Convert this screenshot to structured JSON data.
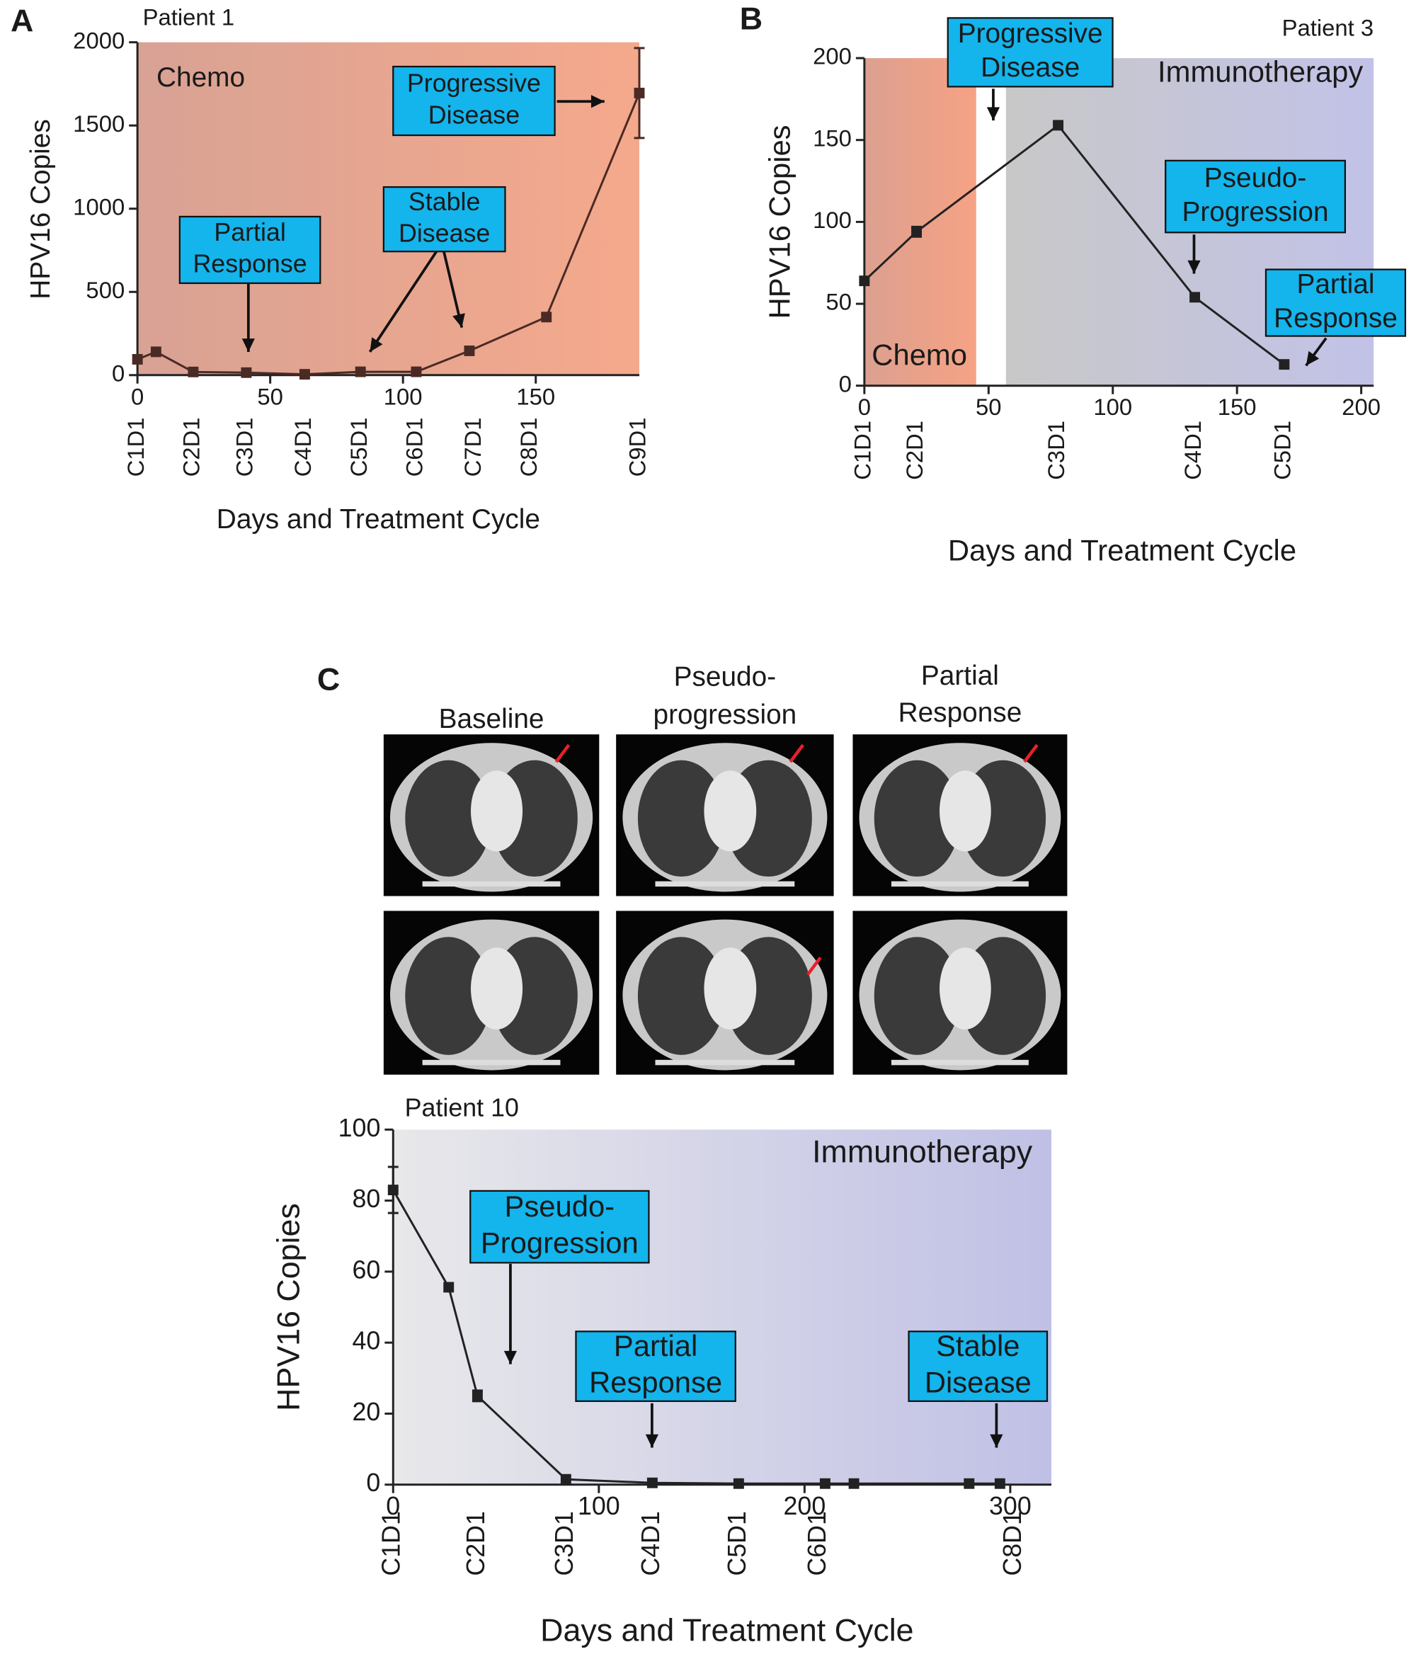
{
  "chart_data": [
    {
      "type": "line",
      "panel": "A",
      "title": "Patient 1",
      "xlabel": "Days and Treatment Cycle",
      "ylabel": "HPV16 Copies",
      "x": [
        0,
        7,
        21,
        41,
        63,
        84,
        105,
        125,
        154,
        189
      ],
      "values": [
        95,
        140,
        19,
        15,
        5,
        20,
        20,
        146,
        349,
        1695
      ],
      "errors": [
        null,
        null,
        null,
        null,
        null,
        null,
        null,
        null,
        null,
        270
      ],
      "color": "#4a2a24",
      "xlim": [
        0,
        189
      ],
      "ylim": [
        0,
        2000
      ],
      "xticks": [
        0,
        50,
        100,
        150
      ],
      "yticks": [
        0,
        500,
        1000,
        1500,
        2000
      ],
      "cycle_labels": {
        "labels": [
          "C1D1",
          "C2D1",
          "C3D1",
          "C4D1",
          "C5D1",
          "C6D1",
          "C7D1",
          "C8D1",
          "C9D1"
        ],
        "x": [
          0,
          21,
          41,
          63,
          84,
          105,
          127,
          148,
          189
        ]
      },
      "regions": [
        {
          "label": "Chemo",
          "start": 0,
          "end": 189,
          "color": [
            "#d8a294",
            "#f5a98c"
          ]
        }
      ],
      "annotations": [
        {
          "text": [
            "Progressive",
            "Disease"
          ]
        },
        {
          "text": [
            "Partial",
            "Response"
          ]
        },
        {
          "text": [
            "Stable",
            "Disease"
          ]
        }
      ]
    },
    {
      "type": "line",
      "panel": "B",
      "title": "Patient 3",
      "xlabel": "Days and Treatment Cycle",
      "ylabel": "HPV16 Copies",
      "x": [
        0,
        21,
        78,
        133,
        169
      ],
      "values": [
        64,
        94,
        159,
        54,
        13
      ],
      "errors": [
        null,
        3,
        null,
        null,
        null
      ],
      "color": "#222222",
      "xlim": [
        0,
        205
      ],
      "ylim": [
        0,
        200
      ],
      "xticks": [
        0,
        50,
        100,
        150,
        200
      ],
      "yticks": [
        0,
        50,
        100,
        150,
        200
      ],
      "cycle_labels": {
        "labels": [
          "C1D1",
          "C2D1",
          "C3D1",
          "C4D1",
          "C5D1"
        ],
        "x": [
          0,
          21,
          78,
          133,
          169
        ]
      },
      "regions": [
        {
          "label": "Chemo",
          "start": 0,
          "end": 45,
          "color": [
            "#dca090",
            "#f6a284"
          ]
        },
        {
          "label": "Immunotherapy",
          "start": 57,
          "end": 205,
          "color": [
            "#c8c8c8",
            "#c2c2e8"
          ]
        }
      ],
      "annotations": [
        {
          "text": [
            "Progressive",
            "Disease"
          ]
        },
        {
          "text": [
            "Pseudo-",
            "Progression"
          ]
        },
        {
          "text": [
            "Partial",
            "Response"
          ]
        }
      ]
    },
    {
      "type": "line",
      "panel": "C",
      "title": "Patient 10",
      "xlabel": "Days and Treatment Cycle",
      "ylabel": "HPV16 Copies",
      "x": [
        0,
        27,
        41,
        84,
        126,
        168,
        210,
        224,
        280,
        295
      ],
      "values": [
        83,
        55.6,
        25,
        1.5,
        0.5,
        0.3,
        0.3,
        0.3,
        0.3,
        0.3
      ],
      "errors": [
        6.5,
        null,
        1.5,
        null,
        null,
        null,
        null,
        null,
        null,
        null
      ],
      "color": "#222222",
      "xlim": [
        0,
        320
      ],
      "ylim": [
        0,
        100
      ],
      "xticks": [
        0,
        100,
        200,
        300
      ],
      "yticks": [
        0,
        20,
        40,
        60,
        80,
        100
      ],
      "cycle_labels": {
        "labels": [
          "C1D1",
          "C2D1",
          "C3D1",
          "C4D1",
          "C5D1",
          "C6D1",
          "C8D1"
        ],
        "x": [
          0,
          41,
          84,
          126,
          168,
          207,
          302
        ]
      },
      "regions": [
        {
          "label": "Immunotherapy",
          "start": 0,
          "end": 320,
          "color": [
            "#e8e8ea",
            "#c0c0e6"
          ]
        }
      ],
      "annotations": [
        {
          "text": [
            "Pseudo-",
            "Progression"
          ]
        },
        {
          "text": [
            "Partial",
            "Response"
          ]
        },
        {
          "text": [
            "Stable",
            "Disease"
          ]
        }
      ]
    }
  ],
  "scans": {
    "labels": [
      [
        "Baseline"
      ],
      [
        "Pseudo-",
        "progression"
      ],
      [
        "Partial",
        "Response"
      ]
    ]
  }
}
